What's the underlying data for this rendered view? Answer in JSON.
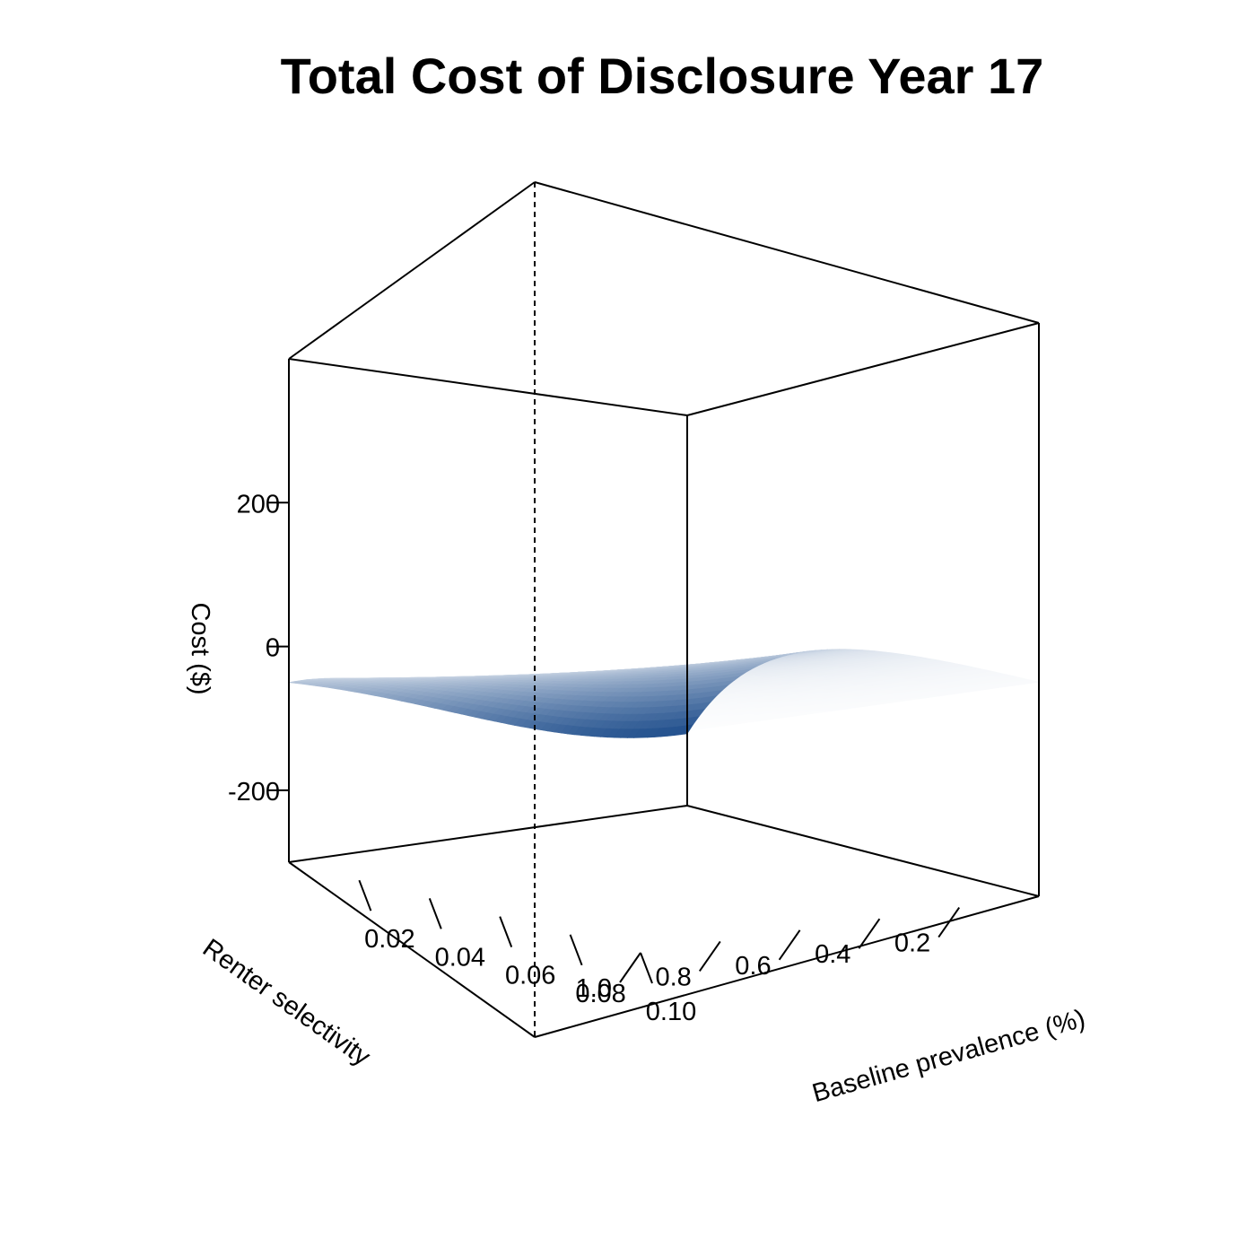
{
  "chart_data": {
    "type": "surface",
    "title": "Total Cost of Disclosure Year 17",
    "xlabel": "Baseline prevalence (%)",
    "ylabel": "Renter selectivity",
    "zlabel": "Cost ($)",
    "xlim": [
      0.0,
      0.1
    ],
    "ylim": [
      0.0,
      1.0
    ],
    "zlim": [
      -300,
      400
    ],
    "x_ticks": [
      0.02,
      0.04,
      0.06,
      0.08,
      0.1
    ],
    "x_tick_labels": [
      "0.02",
      "0.04",
      "0.06",
      "0.08",
      "0.10"
    ],
    "y_ticks": [
      0.2,
      0.4,
      0.6,
      0.8,
      1.0
    ],
    "y_tick_labels": [
      "0.2",
      "0.4",
      "0.6",
      "0.8",
      "1.0"
    ],
    "z_ticks": [
      -200,
      0,
      200
    ],
    "z_tick_labels": [
      "-200",
      "0",
      "200"
    ],
    "surface": {
      "z_at_corners": {
        "x0_y0": -200,
        "x0_y1": 0,
        "x1_y0": 0,
        "x1_y1": 0
      },
      "color_low": "#1f4e8c",
      "color_high": "#ffffff"
    },
    "grid": false,
    "legend": "none"
  }
}
